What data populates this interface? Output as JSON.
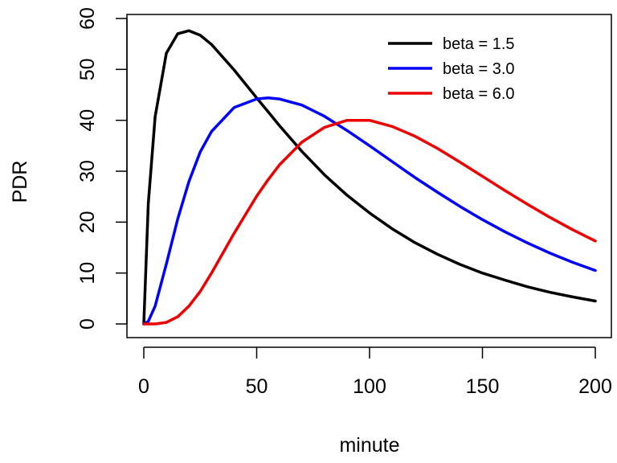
{
  "chart_data": {
    "type": "line",
    "title": "",
    "xlabel": "minute",
    "ylabel": "PDR",
    "xlim": [
      0,
      200
    ],
    "ylim": [
      0,
      60
    ],
    "x_ticks": [
      0,
      50,
      100,
      150,
      200
    ],
    "y_ticks": [
      0,
      10,
      20,
      30,
      40,
      50,
      60
    ],
    "grid": false,
    "legend_position": "top-right",
    "x": [
      0,
      2,
      5,
      10,
      15,
      20,
      25,
      30,
      40,
      50,
      55,
      60,
      70,
      80,
      90,
      100,
      110,
      120,
      130,
      140,
      150,
      160,
      170,
      180,
      190,
      200
    ],
    "series": [
      {
        "name": "beta = 1.5",
        "color": "#000000",
        "values": [
          0,
          23.7,
          40.7,
          53.2,
          57.0,
          57.6,
          56.7,
          54.9,
          49.9,
          44.4,
          41.7,
          39.0,
          33.9,
          29.3,
          25.3,
          21.8,
          18.7,
          16.0,
          13.7,
          11.7,
          10.0,
          8.6,
          7.3,
          6.2,
          5.3,
          4.5
        ]
      },
      {
        "name": "beta = 3.0",
        "color": "#0000ff",
        "values": [
          0,
          0.5,
          3.5,
          11.8,
          20.6,
          28.0,
          33.8,
          37.8,
          42.5,
          44.2,
          44.4,
          44.2,
          43.0,
          40.8,
          38.0,
          35.0,
          31.9,
          28.8,
          25.9,
          23.1,
          20.5,
          18.1,
          15.9,
          13.9,
          12.1,
          10.5
        ]
      },
      {
        "name": "beta = 6.0",
        "color": "#ee0000",
        "values": [
          0,
          0,
          0,
          0.3,
          1.4,
          3.5,
          6.4,
          10.0,
          17.8,
          25.1,
          28.3,
          31.2,
          35.7,
          38.6,
          40.0,
          40.0,
          38.8,
          36.9,
          34.5,
          31.8,
          29.0,
          26.2,
          23.5,
          20.9,
          18.5,
          16.3
        ]
      }
    ]
  }
}
